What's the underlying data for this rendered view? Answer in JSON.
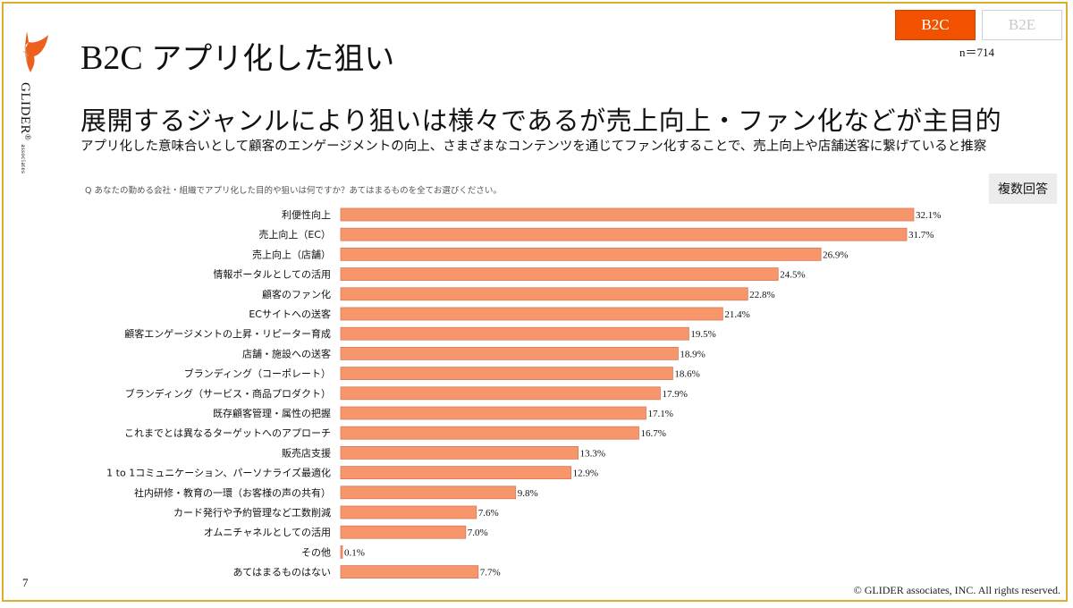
{
  "header": {
    "title_prefix": "B2C",
    "title_text": "アプリ化した狙い",
    "headline": "展開するジャンルにより狙いは様々であるが売上向上・ファン化などが主目的",
    "subline": "アプリ化した意味合いとして顧客のエンゲージメントの向上、さまざまなコンテンツを通じてファン化することで、売上向上や店舗送客に繋げていると推察"
  },
  "tabs": [
    {
      "label": "B2C",
      "active": true
    },
    {
      "label": "B2E",
      "active": false
    }
  ],
  "sample_size": "n＝714",
  "logo": {
    "name": "GLIDER",
    "reg": "®",
    "sub": "associates"
  },
  "question": "Q あなたの勤める会社・組織でアプリ化した目的や狙いは何ですか？あてはまるものを全てお選びください。",
  "answer_type_badge": "複数回答",
  "colors": {
    "accent": "#f25200",
    "bar_fill": "#f7956b",
    "bar_stroke": "#d9785a",
    "frame": "#d9b02a"
  },
  "chart_data": {
    "type": "bar",
    "orientation": "horizontal",
    "title": "",
    "xlabel": "",
    "ylabel": "",
    "unit": "%",
    "xlim": [
      0,
      32.1
    ],
    "grid": false,
    "legend": "none",
    "categories": [
      "利便性向上",
      "売上向上（EC）",
      "売上向上（店舗）",
      "情報ポータルとしての活用",
      "顧客のファン化",
      "ECサイトへの送客",
      "顧客エンゲージメントの上昇・リピーター育成",
      "店舗・施設への送客",
      "ブランディング（コーポレート）",
      "ブランディング（サービス・商品プロダクト）",
      "既存顧客管理・属性の把握",
      "これまでとは異なるターゲットへのアプローチ",
      "販売店支援",
      "1 to 1コミュニケーション、パーソナライズ最適化",
      "社内研修・教育の一環（お客様の声の共有）",
      "カード発行や予約管理など工数削減",
      "オムニチャネルとしての活用",
      "その他",
      "あてはまるものはない"
    ],
    "values": [
      32.1,
      31.7,
      26.9,
      24.5,
      22.8,
      21.4,
      19.5,
      18.9,
      18.6,
      17.9,
      17.1,
      16.7,
      13.3,
      12.9,
      9.8,
      7.6,
      7.0,
      0.1,
      7.7
    ],
    "value_labels": [
      "32.1%",
      "31.7%",
      "26.9%",
      "24.5%",
      "22.8%",
      "21.4%",
      "19.5%",
      "18.9%",
      "18.6%",
      "17.9%",
      "17.1%",
      "16.7%",
      "13.3%",
      "12.9%",
      "9.8%",
      "7.6%",
      "7.0%",
      "0.1%",
      "7.7%"
    ]
  },
  "footer": {
    "page_number": "7",
    "copyright": "© GLIDER associates, INC. All rights reserved."
  }
}
